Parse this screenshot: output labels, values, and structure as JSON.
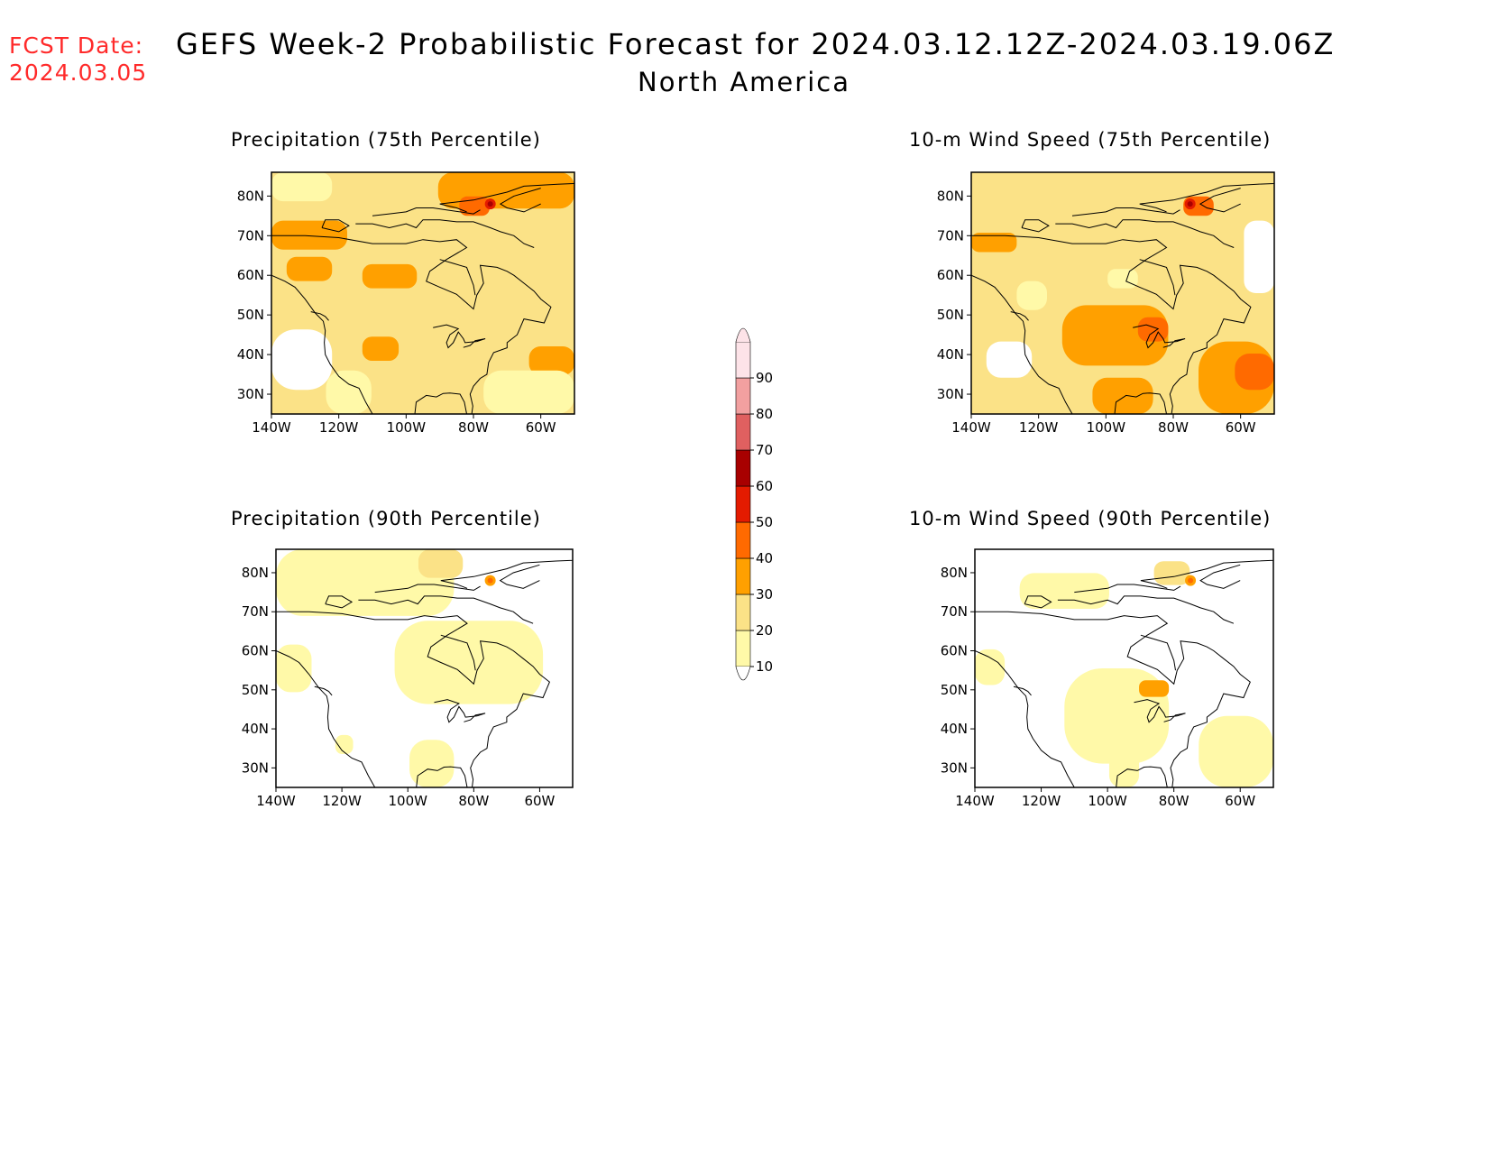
{
  "header": {
    "fcst_label": "FCST Date:",
    "fcst_date": "2024.03.05",
    "title": "GEFS Week-2 Probabilistic Forecast for 2024.03.12.12Z-2024.03.19.06Z",
    "region": "North America"
  },
  "panels": [
    {
      "title": "Precipitation (75th Percentile)"
    },
    {
      "title": "10-m Wind Speed (75th Percentile)"
    },
    {
      "title": "Precipitation (90th Percentile)"
    },
    {
      "title": "10-m Wind Speed (90th Percentile)"
    }
  ],
  "axes": {
    "lat_labels": [
      "80N",
      "70N",
      "60N",
      "50N",
      "40N",
      "30N"
    ],
    "lat_values": [
      80,
      70,
      60,
      50,
      40,
      30
    ],
    "lon_labels": [
      "140W",
      "120W",
      "100W",
      "80W",
      "60W"
    ],
    "lon_values": [
      -140,
      -120,
      -100,
      -80,
      -60
    ],
    "lat_range": [
      25,
      86
    ],
    "lon_range": [
      -140,
      -50
    ]
  },
  "colorbar": {
    "levels": [
      "10",
      "20",
      "30",
      "40",
      "50",
      "60",
      "70",
      "80",
      "90"
    ],
    "colors": [
      "#fff9a8",
      "#fbe287",
      "#ffa000",
      "#ff6a00",
      "#e41b00",
      "#a80000",
      "#e06060",
      "#f2a0a0",
      "#fde3e8"
    ]
  },
  "chart_data": [
    {
      "type": "heatmap",
      "title": "Precipitation (75th Percentile)",
      "ylim": [
        25,
        86
      ],
      "xlim": [
        -140,
        -50
      ]
    },
    {
      "type": "heatmap",
      "title": "10-m Wind Speed (75th Percentile)",
      "ylim": [
        25,
        86
      ],
      "xlim": [
        -140,
        -50
      ]
    },
    {
      "type": "heatmap",
      "title": "Precipitation (90th Percentile)",
      "ylim": [
        25,
        86
      ],
      "xlim": [
        -140,
        -50
      ]
    },
    {
      "type": "heatmap",
      "title": "10-m Wind Speed (90th Percentile)",
      "ylim": [
        25,
        86
      ],
      "xlim": [
        -140,
        -50
      ]
    }
  ]
}
